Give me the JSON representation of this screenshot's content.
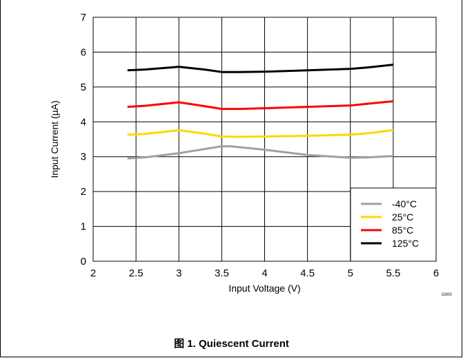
{
  "caption": "图 1. Quiescent Current",
  "figure_code": "G000",
  "colors": {
    "grid": "#000000",
    "background": "#ffffff"
  },
  "chart_data": {
    "type": "line",
    "xlabel": "Input Voltage (V)",
    "ylabel": "Input Current (µA)",
    "xlim": [
      2,
      6
    ],
    "ylim": [
      0,
      7
    ],
    "xticks": [
      2,
      2.5,
      3,
      3.5,
      4,
      4.5,
      5,
      5.5,
      6
    ],
    "xtick_labels": [
      "2",
      "2.5",
      "3",
      "3.5",
      "4",
      "4.5",
      "5",
      "5.5",
      "6"
    ],
    "yticks": [
      0,
      1,
      2,
      3,
      4,
      5,
      6,
      7
    ],
    "ytick_labels": [
      "0",
      "1",
      "2",
      "3",
      "4",
      "5",
      "6",
      "7"
    ],
    "grid": true,
    "legend": "bottom-right",
    "series": [
      {
        "name": "-40°C",
        "color": "#a0a0a0",
        "x": [
          2.4,
          2.6,
          3.0,
          3.3,
          3.5,
          3.6,
          3.8,
          4.0,
          4.5,
          5.0,
          5.2,
          5.5
        ],
        "y": [
          2.95,
          2.98,
          3.1,
          3.22,
          3.3,
          3.3,
          3.25,
          3.2,
          3.05,
          2.97,
          2.98,
          3.02
        ]
      },
      {
        "name": "25°C",
        "color": "#ffd700",
        "x": [
          2.4,
          2.6,
          3.0,
          3.3,
          3.5,
          3.7,
          4.0,
          4.5,
          5.0,
          5.2,
          5.5
        ],
        "y": [
          3.63,
          3.65,
          3.76,
          3.66,
          3.58,
          3.57,
          3.58,
          3.6,
          3.63,
          3.67,
          3.76
        ]
      },
      {
        "name": "85°C",
        "color": "#ff0000",
        "x": [
          2.4,
          2.6,
          3.0,
          3.3,
          3.5,
          3.7,
          4.0,
          4.5,
          5.0,
          5.2,
          5.5
        ],
        "y": [
          4.43,
          4.46,
          4.56,
          4.45,
          4.37,
          4.37,
          4.39,
          4.43,
          4.47,
          4.52,
          4.59
        ]
      },
      {
        "name": "125°C",
        "color": "#000000",
        "x": [
          2.4,
          2.6,
          3.0,
          3.3,
          3.5,
          3.7,
          4.0,
          4.5,
          5.0,
          5.2,
          5.5
        ],
        "y": [
          5.48,
          5.5,
          5.58,
          5.5,
          5.43,
          5.43,
          5.44,
          5.48,
          5.52,
          5.56,
          5.64
        ]
      }
    ]
  }
}
